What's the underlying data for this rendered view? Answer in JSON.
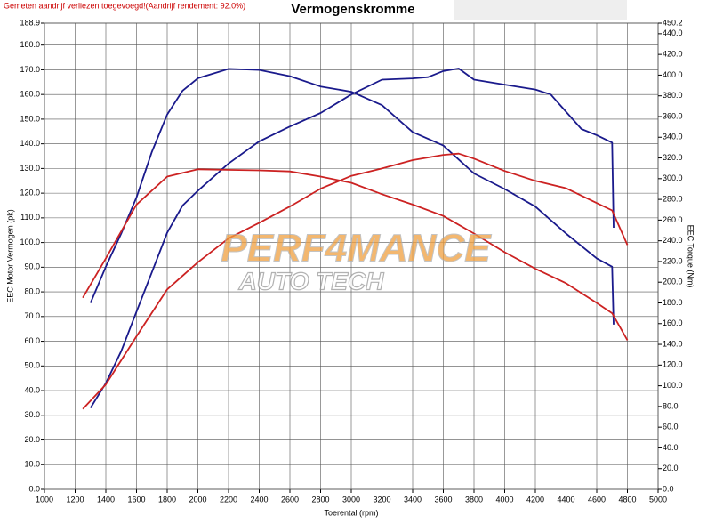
{
  "chart_data": {
    "type": "line",
    "title": "Vermogenskromme",
    "note": "Gemeten aandrijf verliezen toegevoegd!(Aandrijf rendement: 92.0%)",
    "watermark": {
      "top": "PERF4MANCE",
      "bottom": "AUTO TECH"
    },
    "xlabel": "Toerental (rpm)",
    "ylabel": "EEC Motor Vermogen (pk)",
    "y2label": "EEC Torque (Nm)",
    "grid": true,
    "xlim": [
      1000,
      5000
    ],
    "xticks": [
      1000,
      1200,
      1400,
      1600,
      1800,
      2000,
      2200,
      2400,
      2600,
      2800,
      3000,
      3200,
      3400,
      3600,
      3800,
      4000,
      4200,
      4400,
      4600,
      4800,
      5000
    ],
    "ylim": [
      0,
      188.9
    ],
    "yticks": [
      {
        "value": 0,
        "label": "0.0"
      },
      {
        "value": 10,
        "label": "10.0"
      },
      {
        "value": 20,
        "label": "20.0"
      },
      {
        "value": 30,
        "label": "30.0"
      },
      {
        "value": 40,
        "label": "40.0"
      },
      {
        "value": 50,
        "label": "50.0"
      },
      {
        "value": 60,
        "label": "60.0"
      },
      {
        "value": 70,
        "label": "70.0"
      },
      {
        "value": 80,
        "label": "80.0"
      },
      {
        "value": 90,
        "label": "90.0"
      },
      {
        "value": 100,
        "label": "100.0"
      },
      {
        "value": 110,
        "label": "110.0"
      },
      {
        "value": 120,
        "label": "120.0"
      },
      {
        "value": 130,
        "label": "130.0"
      },
      {
        "value": 140,
        "label": "140.0"
      },
      {
        "value": 150,
        "label": "150.0"
      },
      {
        "value": 160,
        "label": "160.0"
      },
      {
        "value": 170,
        "label": "170.0"
      },
      {
        "value": 180,
        "label": "180.0"
      },
      188.9
    ],
    "y2lim": [
      0,
      450.2
    ],
    "y2ticks": [
      {
        "value": 0,
        "label": "0.0"
      },
      {
        "value": 20,
        "label": "20.0"
      },
      {
        "value": 40,
        "label": "40.0"
      },
      {
        "value": 60,
        "label": "60.0"
      },
      {
        "value": 80,
        "label": "80.0"
      },
      {
        "value": 100,
        "label": "100.0"
      },
      {
        "value": 120,
        "label": "120.0"
      },
      {
        "value": 140,
        "label": "140.0"
      },
      {
        "value": 160,
        "label": "160.0"
      },
      {
        "value": 180,
        "label": "180.0"
      },
      {
        "value": 200,
        "label": "200.0"
      },
      {
        "value": 220,
        "label": "220.0"
      },
      {
        "value": 240,
        "label": "240.0"
      },
      {
        "value": 260,
        "label": "260.0"
      },
      {
        "value": 280,
        "label": "280.0"
      },
      {
        "value": 300,
        "label": "300.0"
      },
      {
        "value": 320,
        "label": "320.0"
      },
      {
        "value": 340,
        "label": "340.0"
      },
      {
        "value": 360,
        "label": "360.0"
      },
      {
        "value": 380,
        "label": "380.0"
      },
      {
        "value": 400,
        "label": "400.0"
      },
      {
        "value": 420,
        "label": "420.0"
      },
      {
        "value": 440,
        "label": "440.0"
      },
      450.2
    ],
    "series": [
      {
        "color": "#1a1a8c",
        "axis": "y2",
        "x": [
          1300,
          1400,
          1500,
          1600,
          1700,
          1800,
          1900,
          2000,
          2200,
          2400,
          2600,
          2800,
          3000,
          3200,
          3400,
          3600,
          3800,
          4000,
          4200,
          4400,
          4600,
          4700,
          4710
        ],
        "values": [
          180,
          215,
          247,
          282,
          326,
          362,
          385,
          397,
          406,
          405,
          399,
          389,
          384,
          371,
          345,
          332,
          305,
          290,
          273,
          247,
          223,
          215,
          159
        ]
      },
      {
        "color": "#1a1a8c",
        "axis": "y",
        "x": [
          1300,
          1400,
          1500,
          1600,
          1700,
          1800,
          1900,
          2000,
          2200,
          2400,
          2600,
          2800,
          3000,
          3200,
          3400,
          3500,
          3600,
          3700,
          3800,
          4000,
          4200,
          4300,
          4400,
          4500,
          4600,
          4700,
          4710
        ],
        "values": [
          33,
          43,
          56,
          72,
          88,
          104,
          115,
          121,
          132,
          141,
          147,
          152.5,
          160,
          166,
          166.5,
          167,
          169.5,
          170.5,
          166,
          164,
          162,
          160,
          153,
          146,
          143.5,
          140.5,
          106
        ]
      },
      {
        "color": "#cc2222",
        "axis": "y2",
        "x": [
          1250,
          1400,
          1600,
          1800,
          2000,
          2400,
          2600,
          2800,
          3000,
          3200,
          3400,
          3600,
          3800,
          4000,
          4200,
          4400,
          4600,
          4700,
          4800
        ],
        "values": [
          185,
          223,
          275,
          302,
          309,
          308,
          307,
          302,
          296,
          285,
          275,
          264,
          247,
          229,
          213,
          199,
          180,
          170,
          144
        ]
      },
      {
        "color": "#cc2222",
        "axis": "y",
        "x": [
          1250,
          1400,
          1600,
          1800,
          2000,
          2200,
          2400,
          2600,
          2800,
          3000,
          3200,
          3400,
          3600,
          3700,
          3800,
          4000,
          4200,
          4400,
          4600,
          4700,
          4800
        ],
        "values": [
          32.5,
          42.5,
          62,
          81,
          92,
          101.7,
          108,
          114.6,
          121.8,
          127,
          130,
          133.4,
          135.5,
          136,
          134,
          129,
          125,
          122,
          116,
          113,
          99
        ]
      }
    ]
  }
}
